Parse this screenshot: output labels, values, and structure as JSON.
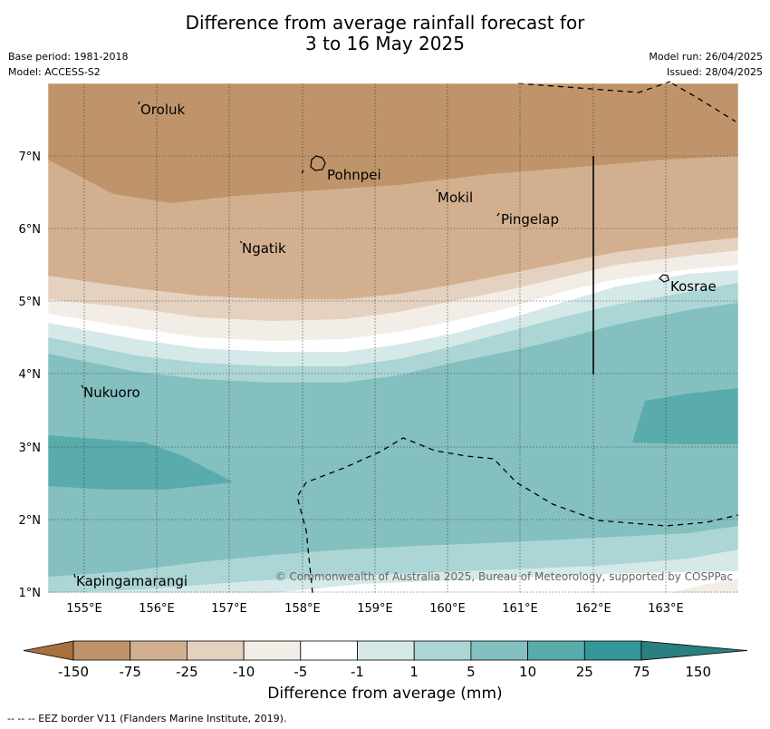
{
  "header": {
    "title_line1": "Difference from average rainfall forecast for",
    "title_line2": "3 to 16 May 2025",
    "base_period": "Base period: 1981-2018",
    "model": "Model: ACCESS-S2",
    "model_run": "Model run: 26/04/2025",
    "issued": "Issued: 28/04/2025"
  },
  "map": {
    "lat_labels": [
      "7°N",
      "6°N",
      "5°N",
      "4°N",
      "3°N",
      "2°N",
      "1°N"
    ],
    "lon_labels": [
      "155°E",
      "156°E",
      "157°E",
      "158°E",
      "159°E",
      "160°E",
      "161°E",
      "162°E",
      "163°E"
    ],
    "places": [
      {
        "name": "Oroluk"
      },
      {
        "name": "Pohnpei"
      },
      {
        "name": "Mokil"
      },
      {
        "name": "Pingelap"
      },
      {
        "name": "Ngatik"
      },
      {
        "name": "Kosrae"
      },
      {
        "name": "Nukuoro"
      },
      {
        "name": "Kapingamarangi"
      }
    ],
    "copyright": "© Commonwealth of Australia 2025, Bureau of Meteorology, supported by COSPPac"
  },
  "colorbar": {
    "title": "Difference from average (mm)",
    "ticks": [
      "-150",
      "-75",
      "-25",
      "-10",
      "-5",
      "-1",
      "1",
      "5",
      "10",
      "25",
      "75",
      "150"
    ],
    "colors": [
      "#a8703d",
      "#bf946a",
      "#d2b08f",
      "#e5d1bf",
      "#f2ede6",
      "#ffffff",
      "#d5e9e8",
      "#acd5d5",
      "#83c0bf",
      "#5aabab",
      "#339797",
      "#2a7f7f"
    ]
  },
  "footnote": "--  --  -- EEZ border V11 (Flanders Marine Institute, 2019)."
}
